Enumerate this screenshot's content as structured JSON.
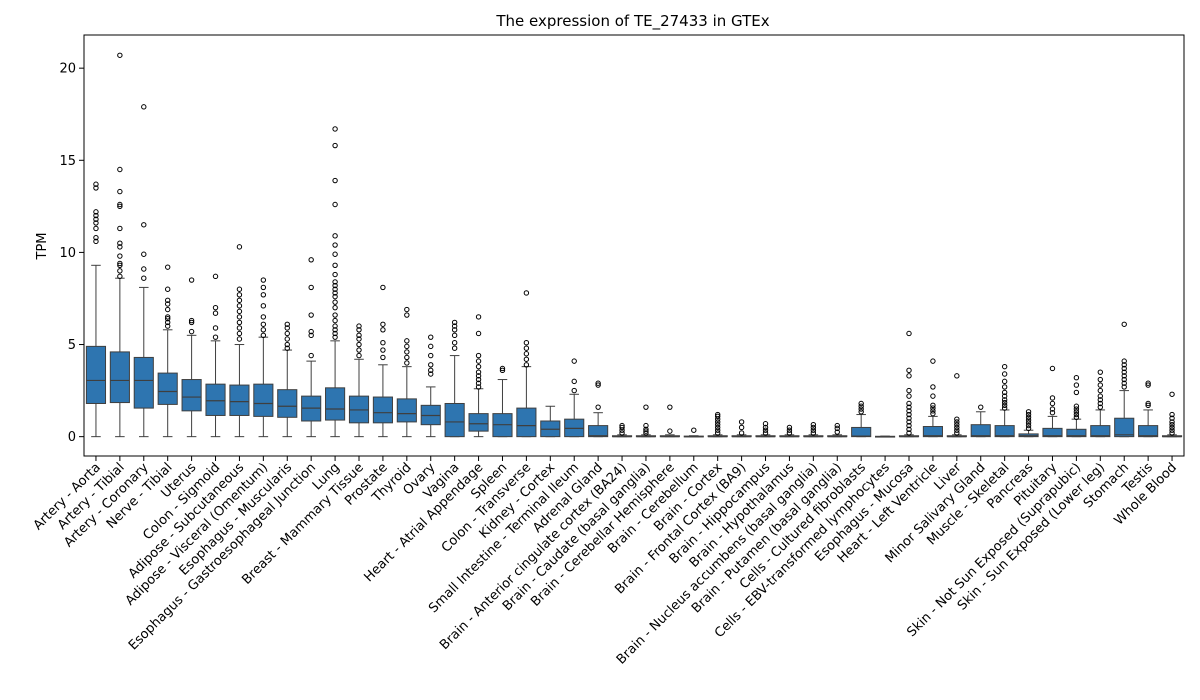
{
  "chart_data": {
    "type": "box",
    "title": "The expression of TE_27433 in GTEx",
    "xlabel": "",
    "ylabel": "TPM",
    "ylim": [
      -1.05,
      21.8
    ],
    "yticks": [
      0,
      5,
      10,
      15,
      20
    ],
    "box_color": "#2e75b0",
    "grid": false,
    "legend": "none",
    "categories": [
      "Artery - Aorta",
      "Artery - Tibial",
      "Artery - Coronary",
      "Nerve - Tibial",
      "Uterus",
      "Colon - Sigmoid",
      "Adipose - Subcutaneous",
      "Adipose - Visceral (Omentum)",
      "Esophagus - Muscularis",
      "Esophagus - Gastroesophageal Junction",
      "Lung",
      "Breast - Mammary Tissue",
      "Prostate",
      "Thyroid",
      "Ovary",
      "Vagina",
      "Heart - Atrial Appendage",
      "Spleen",
      "Colon - Transverse",
      "Kidney - Cortex",
      "Small Intestine - Terminal Ileum",
      "Adrenal Gland",
      "Brain - Anterior cingulate cortex (BA24)",
      "Brain - Caudate (basal ganglia)",
      "Brain - Cerebellar Hemisphere",
      "Brain - Cerebellum",
      "Brain - Cortex",
      "Brain - Frontal Cortex (BA9)",
      "Brain - Hippocampus",
      "Brain - Hypothalamus",
      "Brain - Nucleus accumbens (basal ganglia)",
      "Brain - Putamen (basal ganglia)",
      "Cells - Cultured fibroblasts",
      "Cells - EBV-transformed lymphocytes",
      "Esophagus - Mucosa",
      "Heart - Left Ventricle",
      "Liver",
      "Minor Salivary Gland",
      "Muscle - Skeletal",
      "Pancreas",
      "Pituitary",
      "Skin - Not Sun Exposed (Suprapubic)",
      "Skin - Sun Exposed (Lower leg)",
      "Stomach",
      "Testis",
      "Whole Blood"
    ],
    "boxes": [
      {
        "q1": 1.8,
        "median": 3.05,
        "q3": 4.9,
        "wlo": 0,
        "whi": 9.3,
        "outliers": [
          10.6,
          10.8,
          11.3,
          11.6,
          11.8,
          12.0,
          12.2,
          13.5,
          13.7
        ]
      },
      {
        "q1": 1.85,
        "median": 3.05,
        "q3": 4.6,
        "wlo": 0,
        "whi": 8.6,
        "outliers": [
          8.7,
          9.0,
          9.3,
          9.4,
          9.8,
          10.3,
          10.5,
          11.3,
          12.5,
          12.6,
          13.3,
          14.5,
          20.7
        ]
      },
      {
        "q1": 1.55,
        "median": 3.05,
        "q3": 4.3,
        "wlo": 0,
        "whi": 8.1,
        "outliers": [
          8.6,
          9.1,
          9.9,
          11.5,
          17.9
        ]
      },
      {
        "q1": 1.75,
        "median": 2.45,
        "q3": 3.45,
        "wlo": 0,
        "whi": 5.8,
        "outliers": [
          6.0,
          6.2,
          6.4,
          6.5,
          6.9,
          7.2,
          7.4,
          8.0,
          9.2
        ]
      },
      {
        "q1": 1.4,
        "median": 2.15,
        "q3": 3.1,
        "wlo": 0,
        "whi": 5.5,
        "outliers": [
          5.7,
          6.2,
          6.3,
          8.5
        ]
      },
      {
        "q1": 1.15,
        "median": 1.95,
        "q3": 2.85,
        "wlo": 0,
        "whi": 5.2,
        "outliers": [
          5.4,
          5.9,
          6.7,
          7.0,
          8.7
        ]
      },
      {
        "q1": 1.15,
        "median": 1.9,
        "q3": 2.8,
        "wlo": 0,
        "whi": 5.0,
        "outliers": [
          5.3,
          5.6,
          5.9,
          6.2,
          6.5,
          6.8,
          7.1,
          7.4,
          7.7,
          8.0,
          10.3
        ]
      },
      {
        "q1": 1.1,
        "median": 1.8,
        "q3": 2.85,
        "wlo": 0,
        "whi": 5.4,
        "outliers": [
          5.5,
          5.8,
          6.1,
          6.5,
          7.1,
          7.7,
          8.1,
          8.5
        ]
      },
      {
        "q1": 1.05,
        "median": 1.65,
        "q3": 2.55,
        "wlo": 0,
        "whi": 4.7,
        "outliers": [
          4.8,
          5.0,
          5.3,
          5.6,
          5.9,
          6.1
        ]
      },
      {
        "q1": 0.85,
        "median": 1.55,
        "q3": 2.2,
        "wlo": 0,
        "whi": 4.1,
        "outliers": [
          4.4,
          5.5,
          5.7,
          6.6,
          8.1,
          9.6
        ]
      },
      {
        "q1": 0.9,
        "median": 1.5,
        "q3": 2.65,
        "wlo": 0,
        "whi": 5.2,
        "outliers": [
          5.4,
          5.6,
          5.8,
          6.0,
          6.3,
          6.6,
          7.0,
          7.3,
          7.6,
          7.8,
          8.0,
          8.2,
          8.4,
          8.8,
          9.3,
          9.9,
          10.4,
          10.9,
          12.6,
          13.9,
          15.8,
          16.7
        ]
      },
      {
        "q1": 0.75,
        "median": 1.45,
        "q3": 2.2,
        "wlo": 0,
        "whi": 4.2,
        "outliers": [
          4.4,
          4.7,
          5.0,
          5.3,
          5.5,
          5.8,
          6.0
        ]
      },
      {
        "q1": 0.75,
        "median": 1.3,
        "q3": 2.15,
        "wlo": 0,
        "whi": 3.9,
        "outliers": [
          4.3,
          4.7,
          5.1,
          5.8,
          6.1,
          8.1
        ]
      },
      {
        "q1": 0.8,
        "median": 1.25,
        "q3": 2.05,
        "wlo": 0,
        "whi": 3.8,
        "outliers": [
          4.0,
          4.3,
          4.6,
          4.9,
          5.2,
          6.6,
          6.9
        ]
      },
      {
        "q1": 0.65,
        "median": 1.15,
        "q3": 1.7,
        "wlo": 0,
        "whi": 2.7,
        "outliers": [
          3.4,
          3.6,
          3.9,
          4.4,
          4.9,
          5.4
        ]
      },
      {
        "q1": 0,
        "median": 0.8,
        "q3": 1.8,
        "wlo": 0,
        "whi": 4.4,
        "outliers": [
          4.8,
          5.1,
          5.5,
          5.8,
          6.0,
          6.2
        ]
      },
      {
        "q1": 0.3,
        "median": 0.7,
        "q3": 1.25,
        "wlo": 0,
        "whi": 2.6,
        "outliers": [
          2.7,
          2.9,
          3.1,
          3.3,
          3.5,
          3.8,
          4.1,
          4.4,
          5.6,
          6.5
        ]
      },
      {
        "q1": 0,
        "median": 0.65,
        "q3": 1.25,
        "wlo": 0,
        "whi": 3.1,
        "outliers": [
          3.6,
          3.7
        ]
      },
      {
        "q1": 0,
        "median": 0.6,
        "q3": 1.55,
        "wlo": 0,
        "whi": 3.8,
        "outliers": [
          3.9,
          4.2,
          4.5,
          4.8,
          5.1,
          7.8
        ]
      },
      {
        "q1": 0,
        "median": 0.4,
        "q3": 0.85,
        "wlo": 0,
        "whi": 1.65,
        "outliers": []
      },
      {
        "q1": 0,
        "median": 0.45,
        "q3": 0.95,
        "wlo": 0,
        "whi": 2.3,
        "outliers": [
          2.5,
          3.0,
          4.1
        ]
      },
      {
        "q1": 0,
        "median": 0.05,
        "q3": 0.6,
        "wlo": 0,
        "whi": 1.3,
        "outliers": [
          1.6,
          2.8,
          2.9
        ]
      },
      {
        "q1": 0,
        "median": 0,
        "q3": 0.05,
        "wlo": 0,
        "whi": 0.1,
        "outliers": [
          0.2,
          0.35,
          0.5,
          0.6
        ]
      },
      {
        "q1": 0,
        "median": 0,
        "q3": 0.05,
        "wlo": 0,
        "whi": 0.1,
        "outliers": [
          0.2,
          0.3,
          0.4,
          0.6,
          1.6
        ]
      },
      {
        "q1": 0,
        "median": 0,
        "q3": 0.05,
        "wlo": 0,
        "whi": 0.1,
        "outliers": [
          0.3,
          1.6
        ]
      },
      {
        "q1": 0,
        "median": 0,
        "q3": 0.03,
        "wlo": 0,
        "whi": 0.05,
        "outliers": [
          0.35
        ]
      },
      {
        "q1": 0,
        "median": 0,
        "q3": 0.05,
        "wlo": 0,
        "whi": 0.1,
        "outliers": [
          0.2,
          0.35,
          0.5,
          0.65,
          0.8,
          0.95,
          1.1,
          1.2
        ]
      },
      {
        "q1": 0,
        "median": 0,
        "q3": 0.05,
        "wlo": 0,
        "whi": 0.1,
        "outliers": [
          0.2,
          0.5,
          0.8
        ]
      },
      {
        "q1": 0,
        "median": 0,
        "q3": 0.05,
        "wlo": 0,
        "whi": 0.1,
        "outliers": [
          0.2,
          0.35,
          0.5,
          0.7
        ]
      },
      {
        "q1": 0,
        "median": 0,
        "q3": 0.05,
        "wlo": 0,
        "whi": 0.1,
        "outliers": [
          0.2,
          0.35,
          0.5
        ]
      },
      {
        "q1": 0,
        "median": 0,
        "q3": 0.05,
        "wlo": 0,
        "whi": 0.1,
        "outliers": [
          0.2,
          0.35,
          0.5,
          0.65
        ]
      },
      {
        "q1": 0,
        "median": 0,
        "q3": 0.05,
        "wlo": 0,
        "whi": 0.1,
        "outliers": [
          0.25,
          0.45,
          0.6
        ]
      },
      {
        "q1": 0,
        "median": 0.03,
        "q3": 0.5,
        "wlo": 0,
        "whi": 1.2,
        "outliers": [
          1.35,
          1.5,
          1.65,
          1.8
        ]
      },
      {
        "q1": 0,
        "median": 0,
        "q3": 0.02,
        "wlo": 0,
        "whi": 0.03,
        "outliers": []
      },
      {
        "q1": 0,
        "median": 0,
        "q3": 0.05,
        "wlo": 0,
        "whi": 0.1,
        "outliers": [
          0.2,
          0.4,
          0.6,
          0.8,
          1.0,
          1.2,
          1.4,
          1.6,
          1.8,
          2.2,
          2.5,
          3.3,
          3.6,
          5.6
        ]
      },
      {
        "q1": 0,
        "median": 0.05,
        "q3": 0.55,
        "wlo": 0,
        "whi": 1.1,
        "outliers": [
          1.25,
          1.4,
          1.55,
          1.7,
          2.2,
          2.7,
          4.1
        ]
      },
      {
        "q1": 0,
        "median": 0,
        "q3": 0.05,
        "wlo": 0,
        "whi": 0.1,
        "outliers": [
          0.2,
          0.35,
          0.5,
          0.65,
          0.8,
          0.95,
          3.3
        ]
      },
      {
        "q1": 0,
        "median": 0.05,
        "q3": 0.65,
        "wlo": 0,
        "whi": 1.35,
        "outliers": [
          1.6
        ]
      },
      {
        "q1": 0,
        "median": 0.05,
        "q3": 0.6,
        "wlo": 0,
        "whi": 1.45,
        "outliers": [
          1.55,
          1.7,
          1.85,
          2.0,
          2.2,
          2.4,
          2.7,
          3.0,
          3.4,
          3.8
        ]
      },
      {
        "q1": 0,
        "median": 0.05,
        "q3": 0.15,
        "wlo": 0,
        "whi": 0.35,
        "outliers": [
          0.45,
          0.6,
          0.75,
          0.9,
          1.05,
          1.2,
          1.35
        ]
      },
      {
        "q1": 0,
        "median": 0.05,
        "q3": 0.45,
        "wlo": 0,
        "whi": 1.1,
        "outliers": [
          1.3,
          1.5,
          1.8,
          2.1,
          3.7
        ]
      },
      {
        "q1": 0,
        "median": 0.05,
        "q3": 0.4,
        "wlo": 0,
        "whi": 0.95,
        "outliers": [
          1.05,
          1.2,
          1.35,
          1.5,
          1.65,
          2.4,
          2.8,
          3.2
        ]
      },
      {
        "q1": 0,
        "median": 0.05,
        "q3": 0.6,
        "wlo": 0,
        "whi": 1.45,
        "outliers": [
          1.6,
          1.8,
          2.0,
          2.2,
          2.5,
          2.8,
          3.1,
          3.5
        ]
      },
      {
        "q1": 0,
        "median": 0.1,
        "q3": 1.0,
        "wlo": 0,
        "whi": 2.5,
        "outliers": [
          2.7,
          2.9,
          3.1,
          3.3,
          3.5,
          3.7,
          3.9,
          4.1,
          6.1
        ]
      },
      {
        "q1": 0,
        "median": 0.05,
        "q3": 0.6,
        "wlo": 0,
        "whi": 1.45,
        "outliers": [
          1.7,
          1.8,
          2.8,
          2.9
        ]
      },
      {
        "q1": 0,
        "median": 0,
        "q3": 0.05,
        "wlo": 0,
        "whi": 0.1,
        "outliers": [
          0.2,
          0.35,
          0.5,
          0.65,
          0.8,
          1.0,
          1.2,
          2.3
        ]
      }
    ]
  }
}
